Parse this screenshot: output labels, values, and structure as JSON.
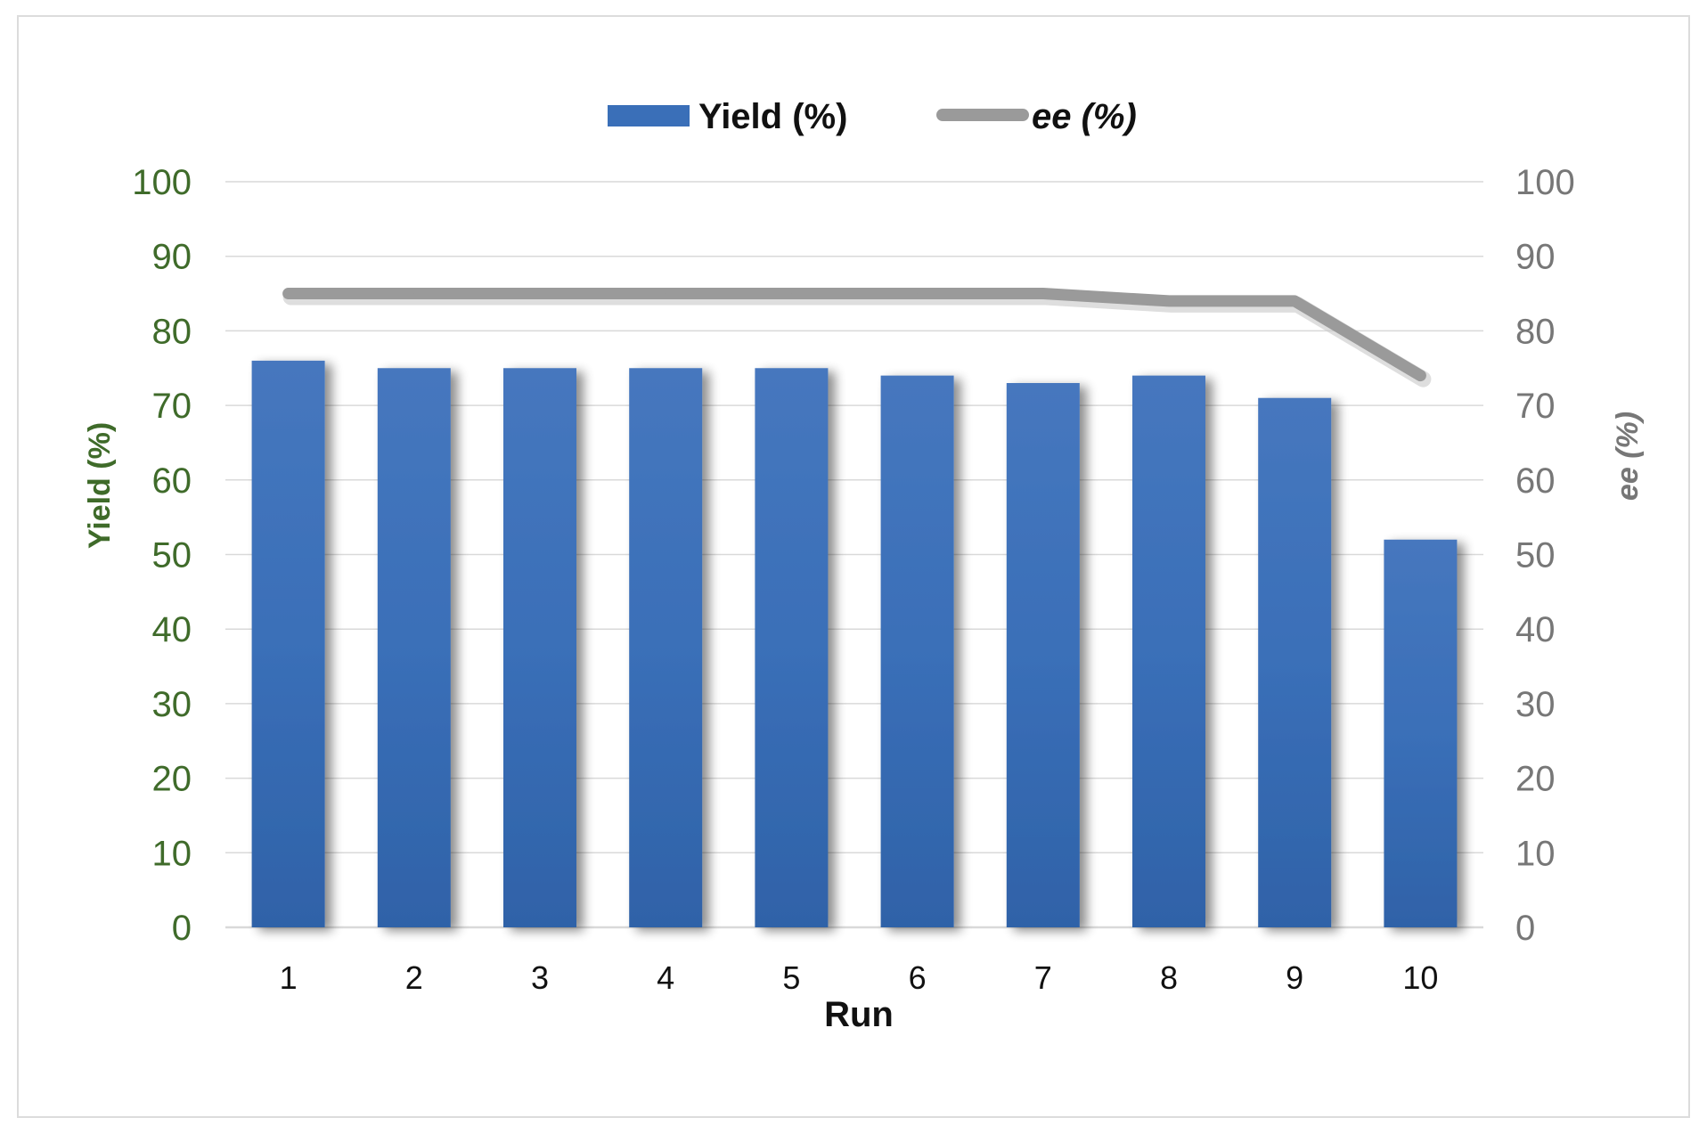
{
  "chart_data": {
    "type": "bar",
    "categories": [
      "1",
      "2",
      "3",
      "4",
      "5",
      "6",
      "7",
      "8",
      "9",
      "10"
    ],
    "series": [
      {
        "name": "Yield (%)",
        "kind": "bar",
        "axis": "left",
        "color": "#3b6fb6",
        "values": [
          76,
          75,
          75,
          75,
          75,
          74,
          73,
          74,
          71,
          52
        ]
      },
      {
        "name": "ee (%)",
        "kind": "line",
        "axis": "right",
        "color": "#999999",
        "values": [
          85,
          85,
          85,
          85,
          85,
          85,
          85,
          84,
          84,
          74
        ]
      }
    ],
    "xlabel": "Run",
    "ylabel_left": "Yield (%)",
    "ylabel_right": "ee (%)",
    "ylim_left": [
      0,
      100
    ],
    "ylim_right": [
      0,
      100
    ],
    "yticks": [
      "0",
      "10",
      "20",
      "30",
      "40",
      "50",
      "60",
      "70",
      "80",
      "90",
      "100"
    ],
    "grid": true,
    "legend_position": "top-center",
    "colors": {
      "left_axis_text": "#3f6b2a",
      "right_axis_text": "#777777",
      "gridline": "#d9d9d9"
    }
  }
}
